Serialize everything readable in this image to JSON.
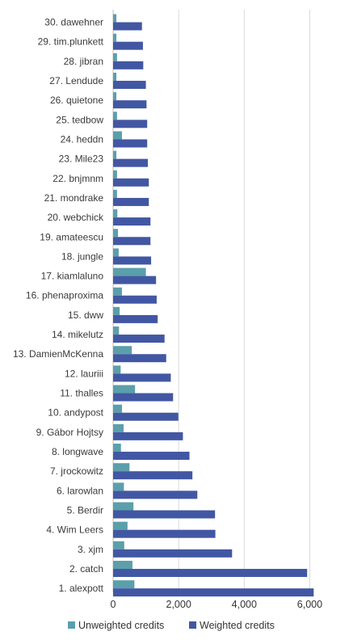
{
  "chart_data": {
    "type": "bar",
    "orientation": "horizontal",
    "title": "",
    "xlabel": "",
    "ylabel": "",
    "xlim": [
      0,
      7000
    ],
    "xticks": [
      0,
      2000,
      4000,
      6000
    ],
    "xtick_labels": [
      "0",
      "2,000",
      "4,000",
      "6,000"
    ],
    "grid": true,
    "legend_position": "bottom",
    "categories": [
      "30. dawehner",
      "29. tim.plunkett",
      "28. jibran",
      "27. Lendude",
      "26. quietone",
      "25. tedbow",
      "24. heddn",
      "23. Mile23",
      "22. bnjmnm",
      "21. mondrake",
      "20. webchick",
      "19. amateescu",
      "18. jungle",
      "17. kiamlaluno",
      "16. phenaproxima",
      "15. dww",
      "14. mikelutz",
      "13. DamienMcKenna",
      "12. lauriii",
      "11. thalles",
      "10. andypost",
      "9. Gábor Hojtsy",
      "8. longwave",
      "7. jrockowitz",
      "6. larowlan",
      "5. Berdir",
      "4. Wim Leers",
      "3. xjm",
      "2. catch",
      "1. alexpott"
    ],
    "series": [
      {
        "name": "Unweighted credits",
        "color": "#5b9fab",
        "values": [
          100,
          100,
          120,
          100,
          100,
          120,
          270,
          100,
          120,
          120,
          130,
          150,
          170,
          1000,
          270,
          200,
          180,
          570,
          230,
          670,
          270,
          320,
          240,
          500,
          330,
          620,
          440,
          340,
          590,
          650
        ]
      },
      {
        "name": "Weighted credits",
        "color": "#4257a3",
        "values": [
          880,
          910,
          920,
          1000,
          1020,
          1040,
          1040,
          1060,
          1090,
          1090,
          1140,
          1140,
          1160,
          1310,
          1330,
          1360,
          1570,
          1620,
          1760,
          1830,
          1990,
          2130,
          2330,
          2420,
          2570,
          3110,
          3120,
          3630,
          5920,
          6120
        ]
      }
    ]
  }
}
